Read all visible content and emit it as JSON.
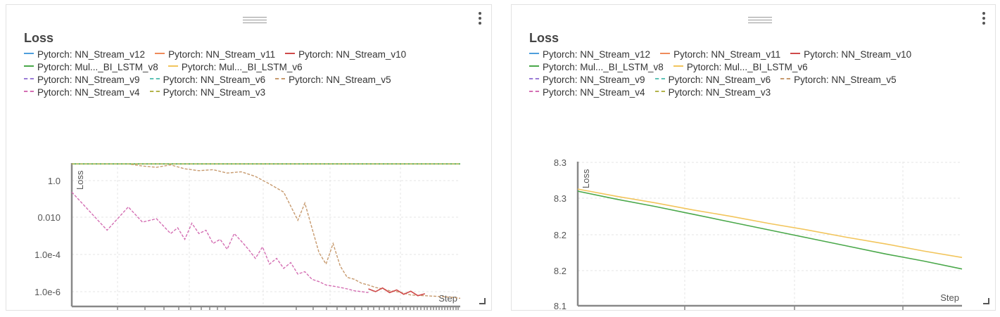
{
  "chart_data": [
    {
      "type": "line",
      "title": "Loss",
      "ylabel": "Loss",
      "xlabel": "Step",
      "yscale": "log",
      "ylim": [
        3e-07,
        10
      ],
      "xlim": [
        0,
        55000
      ],
      "yticks": [
        "1.0",
        "0.010",
        "1.0e-4",
        "1.0e-6"
      ],
      "ytick_values": [
        1,
        0.01,
        0.0001,
        1e-06
      ],
      "grid": true,
      "legend_placement": "top",
      "legend": [
        [
          {
            "name": "Pytorch: NN_Stream_v12",
            "color": "#4e9fdc",
            "dash": false
          },
          {
            "name": "Pytorch: NN_Stream_v11",
            "color": "#ef8b5b",
            "dash": false
          },
          {
            "name": "Pytorch: NN_Stream_v10",
            "color": "#cf4a4a",
            "dash": false
          }
        ],
        [
          {
            "name": "Pytorch: Mul..._BI_LSTM_v8",
            "color": "#4aa84a",
            "dash": false
          },
          {
            "name": "Pytorch: Mul..._BI_LSTM_v6",
            "color": "#f2c55c",
            "dash": false
          }
        ],
        [
          {
            "name": "Pytorch: NN_Stream_v9",
            "color": "#9a7cd6",
            "dash": true
          },
          {
            "name": "Pytorch: NN_Stream_v6",
            "color": "#5fc2b6",
            "dash": true
          },
          {
            "name": "Pytorch: NN_Stream_v5",
            "color": "#c79a6e",
            "dash": true
          }
        ],
        [
          {
            "name": "Pytorch: NN_Stream_v4",
            "color": "#d46fb3",
            "dash": true
          },
          {
            "name": "Pytorch: NN_Stream_v3",
            "color": "#b3b34b",
            "dash": true
          }
        ]
      ],
      "series": [
        {
          "name": "Pytorch: NN_Stream_v5",
          "color": "#c79a6e",
          "dash": true,
          "x": [
            0,
            5000,
            8000,
            10000,
            12000,
            14000,
            16000,
            18000,
            20000,
            22000,
            24000,
            26000,
            28000,
            30000,
            32000,
            33000,
            34000,
            35000,
            36000,
            37000,
            38000,
            39000,
            40000,
            41000,
            42000,
            43000,
            44000,
            45000,
            46000,
            47000,
            48000,
            50000,
            52000,
            54000,
            55000
          ],
          "y": [
            9,
            9,
            9,
            7,
            6,
            8,
            5,
            4,
            4.5,
            3,
            3.5,
            2,
            0.8,
            0.3,
            0.01,
            0.08,
            0.004,
            0.0002,
            5e-05,
            0.0006,
            4e-05,
            1e-05,
            8e-06,
            5e-06,
            4e-06,
            3e-06,
            2.5e-06,
            2e-06,
            1.8e-06,
            1.5e-06,
            1.2e-06,
            1.1e-06,
            1e-06,
            9e-07,
            8e-07
          ]
        },
        {
          "name": "Pytorch: NN_Stream_v4",
          "color": "#d46fb3",
          "dash": true,
          "x": [
            0,
            5000,
            8000,
            10000,
            12000,
            14000,
            15000,
            16000,
            17000,
            18000,
            19000,
            20000,
            21000,
            22000,
            23000,
            24000,
            25000,
            26000,
            27000,
            28000,
            29000,
            30000,
            31000,
            32000,
            33000,
            34000,
            35000,
            36000,
            37000,
            38000,
            39000,
            40000,
            41000,
            42000
          ],
          "y": [
            0.3,
            0.003,
            0.05,
            0.008,
            0.012,
            0.002,
            0.004,
            0.001,
            0.007,
            0.002,
            0.003,
            0.0006,
            0.001,
            0.0003,
            0.002,
            0.0008,
            0.0003,
            0.0001,
            0.0004,
            5e-05,
            0.0001,
            3e-05,
            6e-05,
            1.5e-05,
            2e-05,
            8e-06,
            6e-06,
            4e-06,
            3.5e-06,
            3e-06,
            2.5e-06,
            2e-06,
            1.8e-06,
            1.6e-06
          ]
        },
        {
          "name": "Pytorch: NN_Stream_v10",
          "color": "#cf4a4a",
          "dash": false,
          "x": [
            42000,
            43000,
            44000,
            45000,
            46000,
            47000,
            48000,
            49000,
            50000
          ],
          "y": [
            2.5e-06,
            1.8e-06,
            2.8e-06,
            1.6e-06,
            2.2e-06,
            1.3e-06,
            1.9e-06,
            1.1e-06,
            1.4e-06
          ]
        },
        {
          "name": "Pytorch: Mul..._BI_LSTM_v8",
          "color": "#4aa84a",
          "dash": false,
          "x": [
            0,
            55000
          ],
          "y": [
            9,
            9
          ]
        },
        {
          "name": "Pytorch: NN_Stream_v3",
          "color": "#b3b34b",
          "dash": true,
          "x": [
            0,
            55000
          ],
          "y": [
            9,
            9
          ]
        }
      ]
    },
    {
      "type": "line",
      "title": "Loss",
      "ylabel": "Loss",
      "xlabel": "Step",
      "ylim": [
        8.1,
        8.3
      ],
      "xlim": [
        0,
        100
      ],
      "yticks": [
        "8.3",
        "8.3",
        "8.2",
        "8.2",
        "8.1"
      ],
      "grid": true,
      "legend_placement": "top",
      "legend": [
        [
          {
            "name": "Pytorch: NN_Stream_v12",
            "color": "#4e9fdc",
            "dash": false
          },
          {
            "name": "Pytorch: NN_Stream_v11",
            "color": "#ef8b5b",
            "dash": false
          },
          {
            "name": "Pytorch: NN_Stream_v10",
            "color": "#cf4a4a",
            "dash": false
          }
        ],
        [
          {
            "name": "Pytorch: Mul..._BI_LSTM_v8",
            "color": "#4aa84a",
            "dash": false
          },
          {
            "name": "Pytorch: Mul..._BI_LSTM_v6",
            "color": "#f2c55c",
            "dash": false
          }
        ],
        [
          {
            "name": "Pytorch: NN_Stream_v9",
            "color": "#9a7cd6",
            "dash": true
          },
          {
            "name": "Pytorch: NN_Stream_v6",
            "color": "#5fc2b6",
            "dash": true
          },
          {
            "name": "Pytorch: NN_Stream_v5",
            "color": "#c79a6e",
            "dash": true
          }
        ],
        [
          {
            "name": "Pytorch: NN_Stream_v4",
            "color": "#d46fb3",
            "dash": true
          },
          {
            "name": "Pytorch: NN_Stream_v3",
            "color": "#b3b34b",
            "dash": true
          }
        ]
      ],
      "series": [
        {
          "name": "Pytorch: Mul..._BI_LSTM_v6",
          "color": "#f2c55c",
          "dash": false,
          "x": [
            0,
            10,
            20,
            30,
            40,
            50,
            60,
            70,
            80,
            90,
            100
          ],
          "y": [
            8.262,
            8.252,
            8.243,
            8.233,
            8.224,
            8.214,
            8.205,
            8.195,
            8.186,
            8.176,
            8.167
          ]
        },
        {
          "name": "Pytorch: Mul..._BI_LSTM_v8",
          "color": "#4aa84a",
          "dash": false,
          "x": [
            0,
            10,
            20,
            30,
            40,
            50,
            60,
            70,
            80,
            90,
            100
          ],
          "y": [
            8.259,
            8.248,
            8.238,
            8.227,
            8.216,
            8.205,
            8.194,
            8.183,
            8.172,
            8.162,
            8.151
          ]
        }
      ]
    }
  ]
}
